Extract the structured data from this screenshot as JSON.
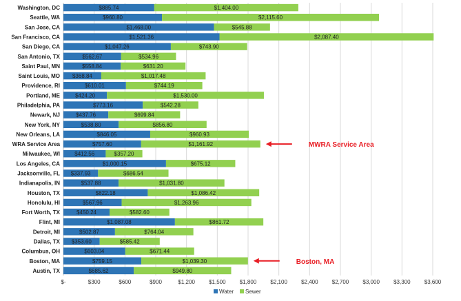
{
  "chart_data": {
    "type": "bar",
    "orientation": "horizontal",
    "stacked": true,
    "title": "",
    "xlabel": "",
    "ylabel": "",
    "categories": [
      "Washington, DC",
      "Seattle, WA",
      "San Jose, CA",
      "San Francisco, CA",
      "San Diego, CA",
      "San Antonio, TX",
      "Saint Paul, MN",
      "Saint Louis, MO",
      "Providence, RI",
      "Portland, ME",
      "Philadelphia, PA",
      "Newark, NJ",
      "New York, NY",
      "New Orleans, LA",
      "WRA Service Area",
      "Milwaukee, WI",
      "Los Angeles, CA",
      "Jacksonville, FL",
      "Indianapolis, IN",
      "Houston, TX",
      "Honolulu, HI",
      "Fort Worth, TX",
      "Flint, MI",
      "Detroit, MI",
      "Dallas, TX",
      "Columbus, OH",
      "Boston, MA",
      "Austin, TX"
    ],
    "series": [
      {
        "name": "Water",
        "color": "#2e75b6",
        "values": [
          885.74,
          960.8,
          1468.0,
          1521.36,
          1047.26,
          562.67,
          558.84,
          368.84,
          610.01,
          424.2,
          773.16,
          437.76,
          538.8,
          846.05,
          757.6,
          412.56,
          1000.15,
          337.93,
          537.88,
          822.18,
          567.96,
          450.24,
          1087.08,
          502.87,
          353.6,
          603.04,
          759.15,
          685.62
        ],
        "labels": [
          "$885.74",
          "$960.80",
          "$1,468.00",
          "$1,521.36",
          "$1,047.26",
          "$562.67",
          "$558.84",
          "$368.84",
          "$610.01",
          "$424.20",
          "$773.16",
          "$437.76",
          "$538.80",
          "$846.05",
          "$757.60",
          "$412.56",
          "$1,000.15",
          "$337.93",
          "$537.88",
          "$822.18",
          "$567.96",
          "$450.24",
          "$1,087.08",
          "$502.87",
          "$353.60",
          "$603.04",
          "$759.15",
          "$685.62"
        ]
      },
      {
        "name": "Sewer",
        "color": "#92d050",
        "values": [
          1404.0,
          2115.6,
          545.88,
          2087.4,
          743.9,
          534.96,
          631.2,
          1017.48,
          744.19,
          1530.0,
          542.28,
          699.84,
          856.8,
          960.93,
          1161.92,
          357.2,
          675.12,
          686.54,
          1031.8,
          1086.42,
          1263.96,
          582.6,
          861.72,
          764.04,
          585.42,
          671.44,
          1039.3,
          949.8
        ],
        "labels": [
          "$1,404.00",
          "$2,115.60",
          "$545.88",
          "$2,087.40",
          "$743.90",
          "$534.96",
          "$631.20",
          "$1,017.48",
          "$744.19",
          "$1,530.00",
          "$542.28",
          "$699.84",
          "$856.80",
          "$960.93",
          "$1,161.92",
          "$357.20",
          "$675.12",
          "$686.54",
          "$1,031.80",
          "$1,086.42",
          "$1,263.96",
          "$582.60",
          "$861.72",
          "$764.04",
          "$585.42",
          "$671.44",
          "$1,039.30",
          "$949.80"
        ]
      }
    ],
    "xlim": [
      0,
      3600
    ],
    "xticks": [
      0,
      300,
      600,
      900,
      1200,
      1500,
      1800,
      2100,
      2400,
      2700,
      3000,
      3300,
      3600
    ],
    "xtick_labels": [
      "$-",
      "$300",
      "$600",
      "$900",
      "$1,200",
      "$1,500",
      "$1,800",
      "$2,100",
      "$2,400",
      "$2,700",
      "$3,000",
      "$3,300",
      "$3,600"
    ],
    "grid": "vertical",
    "legend": {
      "position": "bottom",
      "entries": [
        "Water",
        "Sewer"
      ]
    },
    "annotations": [
      {
        "text": "MWRA Service Area",
        "category": "WRA Service Area",
        "color": "#e81e25"
      },
      {
        "text": "Boston, MA",
        "category": "Boston, MA",
        "color": "#e81e25"
      }
    ]
  }
}
